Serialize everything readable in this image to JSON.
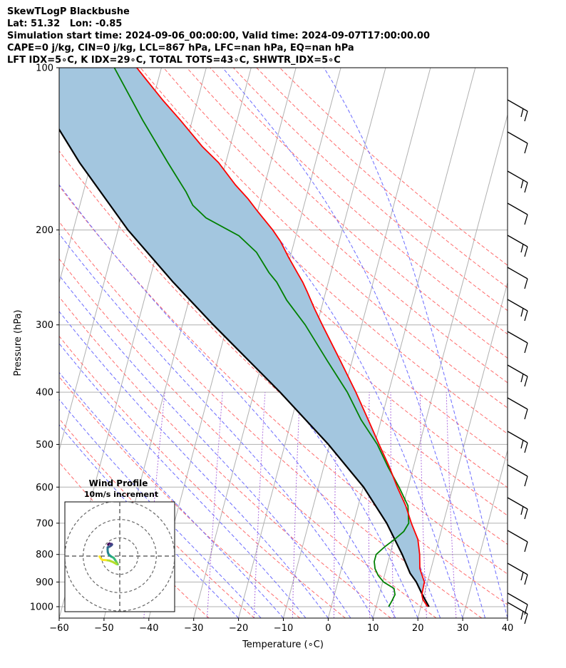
{
  "header": {
    "line1": "SkewTLogP Blackbushe",
    "line2": "Lat: 51.32   Lon: -0.85",
    "line3": "Simulation start time: 2024-09-06_00:00:00, Valid time: 2024-09-07T17:00:00.00",
    "line4": "CAPE=0 j/kg, CIN=0 j/kg, LCL=867 hPa, LFC=nan hPa, EQ=nan hPa",
    "line5": "LFT IDX=5∘C, K IDX=29∘C, TOTAL TOTS=43∘C, SHWTR_IDX=5∘C"
  },
  "colors": {
    "temperature": "#ff0000",
    "dewpoint": "#008000",
    "parcel": "#000000",
    "shading": "#a3c6df",
    "dry_adiabats": "#ff6b6b",
    "moist_adiabats": "#6b6bff",
    "mixing_ratio": "#9b4fd6",
    "isotherms": "#b0b0b0"
  },
  "chart_data": [
    {
      "type": "line",
      "title": "",
      "xlabel": "Temperature (∘C)",
      "ylabel": "Pressure (hPa)",
      "xlim": [
        -60,
        40
      ],
      "ylim": [
        1050,
        100
      ],
      "y_scale": "log",
      "x_ticks": [
        "−60",
        "−50",
        "−40",
        "−30",
        "−20",
        "−10",
        "0",
        "10",
        "20",
        "30",
        "40"
      ],
      "y_ticks": [
        "100",
        "200",
        "300",
        "400",
        "500",
        "600",
        "700",
        "800",
        "900",
        "1000"
      ],
      "grid": true,
      "series": [
        {
          "key": "temperature",
          "pressure": [
            1000,
            970,
            950,
            900,
            850,
            800,
            750,
            700,
            650,
            600,
            550,
            500,
            450,
            400,
            350,
            300,
            280,
            260,
            250,
            240,
            225,
            210,
            200,
            185,
            175,
            165,
            150,
            140,
            125,
            115,
            105,
            100
          ],
          "values": [
            21.5,
            20,
            19.5,
            19.3,
            17.5,
            16.6,
            15.3,
            12.9,
            10.6,
            7.6,
            4.6,
            1,
            -2.9,
            -7.3,
            -12.6,
            -18.8,
            -21.5,
            -24.2,
            -25.7,
            -27.5,
            -30.3,
            -33.1,
            -35.5,
            -39.9,
            -42.9,
            -46.5,
            -51.6,
            -56.2,
            -62.7,
            -67.7,
            -72.8,
            -75.5
          ]
        },
        {
          "key": "dewpoint",
          "pressure": [
            1000,
            975,
            950,
            925,
            900,
            875,
            850,
            825,
            800,
            775,
            750,
            725,
            700,
            650,
            600,
            550,
            500,
            450,
            400,
            350,
            300,
            270,
            250,
            240,
            220,
            205,
            190,
            180,
            170,
            150,
            125,
            100
          ],
          "values": [
            12.8,
            13.2,
            13.5,
            12.9,
            10.2,
            8.6,
            7.5,
            6.9,
            6.9,
            8.3,
            10.1,
            11.7,
            12.3,
            11.1,
            8,
            4.3,
            0.6,
            -4.5,
            -9.2,
            -15.5,
            -22.6,
            -28.2,
            -31.5,
            -33.8,
            -37.8,
            -42.7,
            -51.1,
            -54.8,
            -57.1,
            -62.9,
            -71.1,
            -80.5
          ]
        },
        {
          "key": "parcel",
          "pressure": [
            1000,
            950,
            900,
            867,
            800,
            700,
            600,
            500,
            400,
            300,
            250,
            200,
            150,
            125,
            100
          ],
          "values": [
            21.8,
            19.6,
            17.5,
            15.6,
            12.7,
            7.4,
            0.1,
            -10.3,
            -24.2,
            -43.1,
            -54.6,
            -67.8,
            -82.6,
            -91,
            -100
          ]
        }
      ]
    },
    {
      "type": "line",
      "title": "Wind Profile",
      "subtitle": "10m/s increment",
      "wind_u": [
        -0.8,
        -0.5,
        0.3,
        0.8,
        1.4,
        2.3,
        2.6,
        2.1,
        1.2,
        0.2,
        -0.6,
        -1.2,
        -1.3,
        -1.1,
        -0.6,
        0.2,
        1.2,
        2.1,
        3.0,
        4.1,
        5.0,
        6.1,
        6.9,
        7.6,
        6.4,
        3.5,
        0.2,
        -2.8,
        -5.8,
        -7.2,
        -8.4
      ],
      "wind_v": [
        -1.3,
        -0.8,
        -0.2,
        -0.4,
        -0.6,
        -0.7,
        -1.2,
        -1.8,
        -2.5,
        -3.1,
        -3.3,
        -3.6,
        -5.4,
        -7.7,
        -9.3,
        -10.3,
        -11.2,
        -11.8,
        -12.2,
        -12.9,
        -14.2,
        -15.8,
        -17.2,
        -18.5,
        -18.2,
        -16.5,
        -15.2,
        -14.8,
        -14.6,
        -13.4,
        -11.6
      ]
    }
  ]
}
